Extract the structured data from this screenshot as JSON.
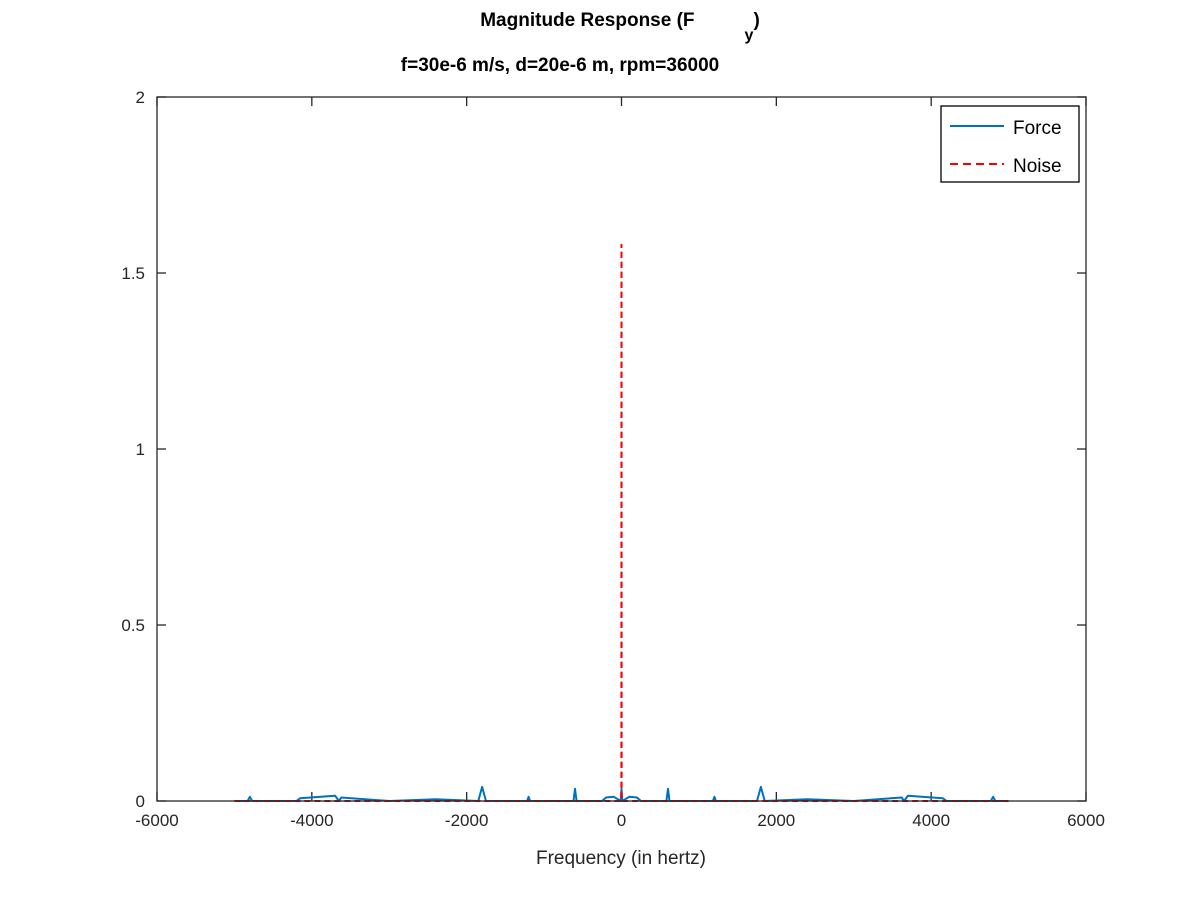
{
  "chart_data": {
    "type": "line",
    "title_main": "Magnitude Response (F",
    "title_subscript": "y",
    "title_close": ")",
    "subtitle": "f=30e-6 m/s, d=20e-6 m, rpm=36000",
    "xlabel": "Frequency (in hertz)",
    "ylabel": "",
    "xlim": [
      -6000,
      6000
    ],
    "ylim": [
      0,
      2
    ],
    "xticks": [
      -6000,
      -4000,
      -2000,
      0,
      2000,
      4000,
      6000
    ],
    "yticks": [
      0,
      0.5,
      1,
      1.5,
      2
    ],
    "xtick_labels": [
      "-6000",
      "-4000",
      "-2000",
      "0",
      "2000",
      "4000",
      "6000"
    ],
    "ytick_labels": [
      "0",
      "0.5",
      "1",
      "1.5",
      "2"
    ],
    "grid": false,
    "legend_position": "top-right",
    "series": [
      {
        "name": "Force",
        "color": "#0072BD",
        "style": "solid",
        "x": [
          -5000,
          -4830,
          -4800,
          -4770,
          -4200,
          -4150,
          -3700,
          -3650,
          -3620,
          -3000,
          -2400,
          -1850,
          -1800,
          -1750,
          -1220,
          -1200,
          -1180,
          -620,
          -600,
          -580,
          -250,
          -200,
          -100,
          -10,
          0,
          10,
          100,
          200,
          250,
          580,
          600,
          620,
          1180,
          1200,
          1220,
          1750,
          1800,
          1850,
          2400,
          3000,
          3620,
          3650,
          3700,
          4150,
          4200,
          4770,
          4800,
          4830,
          5000
        ],
        "y": [
          0,
          0,
          0.012,
          0,
          0,
          0.008,
          0.015,
          0,
          0.01,
          0,
          0.005,
          0,
          0.04,
          0,
          0,
          0.012,
          0,
          0,
          0.035,
          0,
          0,
          0.01,
          0.012,
          0,
          0.035,
          0,
          0.012,
          0.01,
          0,
          0,
          0.035,
          0,
          0,
          0.012,
          0,
          0,
          0.04,
          0,
          0.005,
          0,
          0.01,
          0,
          0.015,
          0.008,
          0,
          0,
          0.012,
          0,
          0
        ]
      },
      {
        "name": "Noise",
        "color": "#FF0000",
        "style": "dashed",
        "x": [
          -5000,
          -1,
          0,
          1,
          5000
        ],
        "y": [
          0,
          0,
          1.58,
          0,
          0
        ]
      }
    ]
  }
}
